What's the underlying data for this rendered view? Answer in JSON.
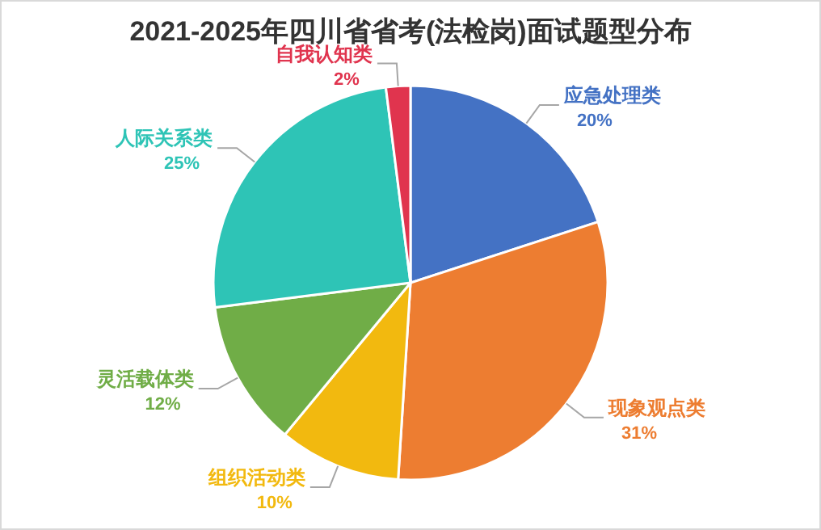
{
  "chart_data": {
    "type": "pie",
    "title": "2021-2025年四川省省考(法检岗)面试题型分布",
    "categories": [
      "应急处理类",
      "现象观点类",
      "组织活动类",
      "灵活载体类",
      "人际关系类",
      "自我认知类"
    ],
    "values": [
      20,
      31,
      10,
      12,
      25,
      2
    ],
    "value_labels": [
      "20%",
      "31%",
      "10%",
      "12%",
      "25%",
      "2%"
    ],
    "colors": [
      "#4472c4",
      "#ed7d31",
      "#f2b90f",
      "#70ad47",
      "#2ec4b6",
      "#e0344e"
    ]
  }
}
